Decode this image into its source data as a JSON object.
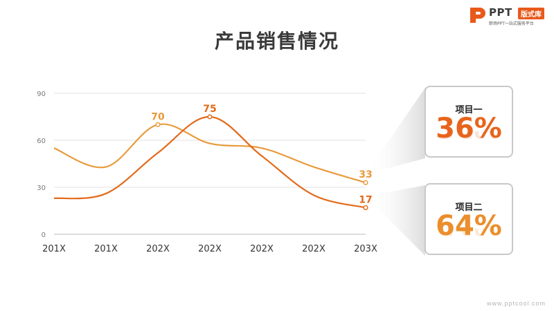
{
  "brand": {
    "name": "PPT",
    "badge": "版式库",
    "tagline": "职场PPT一站式服务平台",
    "orange": "#e8591a"
  },
  "watermark": "www.pptcool.com",
  "chart_data": {
    "type": "line",
    "title": "产品销售情况",
    "categories": [
      "201X",
      "201X",
      "202X",
      "202X",
      "202X",
      "202X",
      "203X"
    ],
    "ylim": [
      0,
      90
    ],
    "yticks": [
      0,
      30,
      60,
      90
    ],
    "grid": true,
    "series": [
      {
        "values": [
          55,
          43,
          70,
          58,
          55,
          43,
          33
        ],
        "color": "#e89a3c",
        "point_labels": {
          "2": "70",
          "6": "33"
        }
      },
      {
        "values": [
          23,
          26,
          52,
          75,
          50,
          25,
          17
        ],
        "color": "#e26a1a",
        "point_labels": {
          "3": "75",
          "6": "17"
        }
      }
    ]
  },
  "cards": [
    {
      "label": "项目一",
      "value": "36%",
      "color": "#e8641c"
    },
    {
      "label": "项目二",
      "value": "64%",
      "color": "#eb8e2c"
    }
  ]
}
